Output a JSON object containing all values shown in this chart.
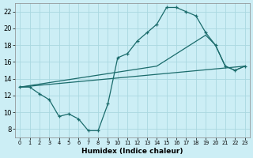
{
  "title": "",
  "xlabel": "Humidex (Indice chaleur)",
  "bg_color": "#cceef5",
  "grid_color": "#aad8e0",
  "line_color": "#1a6b6b",
  "xlim": [
    -0.5,
    23.5
  ],
  "ylim": [
    7,
    23
  ],
  "xticks": [
    0,
    1,
    2,
    3,
    4,
    5,
    6,
    7,
    8,
    9,
    10,
    11,
    12,
    13,
    14,
    15,
    16,
    17,
    18,
    19,
    20,
    21,
    22,
    23
  ],
  "yticks": [
    8,
    10,
    12,
    14,
    16,
    18,
    20,
    22
  ],
  "line1_x": [
    0,
    1,
    2,
    3,
    4,
    5,
    6,
    7,
    8,
    9,
    10,
    11,
    12,
    13,
    14,
    15,
    16,
    17,
    18,
    19,
    20,
    21,
    22,
    23
  ],
  "line1_y": [
    13.0,
    13.0,
    12.2,
    11.5,
    9.5,
    9.8,
    9.2,
    7.8,
    7.8,
    11.0,
    16.5,
    17.0,
    18.5,
    19.5,
    20.5,
    22.5,
    22.5,
    22.0,
    21.5,
    19.5,
    18.0,
    15.5,
    15.0,
    15.5
  ],
  "line2_x": [
    0,
    23
  ],
  "line2_y": [
    13.0,
    15.5
  ],
  "line3_x": [
    0,
    14,
    19,
    20,
    21,
    22,
    23
  ],
  "line3_y": [
    13.0,
    15.5,
    19.2,
    18.0,
    15.5,
    15.0,
    15.5
  ]
}
